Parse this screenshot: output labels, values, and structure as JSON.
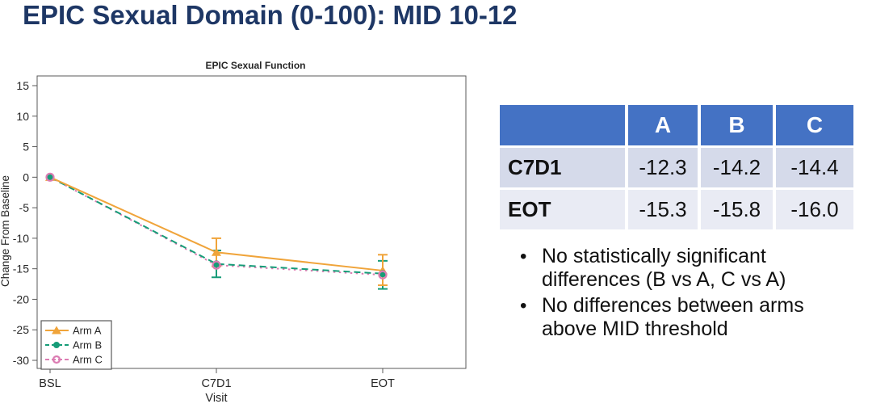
{
  "slide": {
    "title": "EPIC Sexual Domain (0-100): MID 10-12"
  },
  "chart_data": {
    "type": "line",
    "title": "EPIC Sexual Function",
    "xlabel": "Visit",
    "ylabel": "Change From Baseline",
    "categories": [
      "BSL",
      "C7D1",
      "EOT"
    ],
    "ylim": [
      -30,
      15
    ],
    "ytick_step": 5,
    "grid": false,
    "legend_position": "bottom-left",
    "series": [
      {
        "name": "Arm A",
        "color": "#f0a43a",
        "marker": "triangle",
        "dash": "solid",
        "values": [
          0,
          -12.3,
          -15.3
        ],
        "error_low": [
          null,
          -14.6,
          -17.7
        ],
        "error_high": [
          null,
          -10.0,
          -12.7
        ]
      },
      {
        "name": "Arm B",
        "color": "#169c78",
        "marker": "circle",
        "dash": "dashed",
        "values": [
          0,
          -14.2,
          -15.8
        ],
        "error_low": [
          null,
          -16.4,
          -18.3
        ],
        "error_high": [
          null,
          -12.0,
          -13.7
        ]
      },
      {
        "name": "Arm C",
        "color": "#dc7db3",
        "marker": "open-circle",
        "dash": "dotted",
        "values": [
          0,
          -14.4,
          -16.0
        ],
        "error_low": [
          null,
          null,
          null
        ],
        "error_high": [
          null,
          null,
          null
        ]
      }
    ]
  },
  "table": {
    "header_bg": "#4472c4",
    "row_bgs": [
      "#d5daea",
      "#e9ebf4"
    ],
    "columns": [
      "",
      "A",
      "B",
      "C"
    ],
    "rows": [
      {
        "label": "C7D1",
        "values": [
          "-12.3",
          "-14.2",
          "-14.4"
        ]
      },
      {
        "label": "EOT",
        "values": [
          "-15.3",
          "-15.8",
          "-16.0"
        ]
      }
    ]
  },
  "bullets": [
    "No statistically significant differences (B vs A, C vs A)",
    "No differences between arms above MID threshold"
  ]
}
